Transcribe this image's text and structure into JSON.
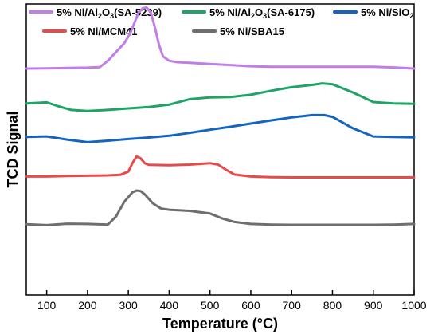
{
  "chart_data": {
    "type": "line",
    "xlabel": "Temperature (°C)",
    "ylabel": "TCD Signal",
    "xlim": [
      50,
      1000
    ],
    "ylim": [
      0,
      100
    ],
    "x_ticks": [
      100,
      200,
      300,
      400,
      500,
      600,
      700,
      800,
      900,
      1000
    ],
    "x_tick_labels": [
      "100",
      "200",
      "300",
      "400",
      "500",
      "600",
      "700",
      "800",
      "900",
      "1000"
    ],
    "y_ticks_shown": false,
    "grid": false,
    "legend_position": "top",
    "series": [
      {
        "name_parts": [
          [
            "5% Ni/Al",
            false
          ],
          [
            "2",
            true
          ],
          [
            "O",
            false
          ],
          [
            "3",
            true
          ],
          [
            "(SA-5239)",
            false
          ]
        ],
        "color": "#C07EE6",
        "x": [
          50,
          100,
          150,
          200,
          230,
          250,
          270,
          290,
          305,
          315,
          325,
          335,
          345,
          355,
          365,
          375,
          385,
          400,
          420,
          450,
          500,
          550,
          600,
          650,
          700,
          750,
          800,
          850,
          900,
          950,
          1000
        ],
        "y": [
          77.8,
          77.9,
          78.0,
          78.1,
          78.3,
          80.5,
          83.5,
          86.5,
          90.0,
          93.5,
          97.0,
          98.5,
          98.8,
          97.0,
          92.0,
          86.0,
          82.0,
          80.5,
          80.0,
          79.8,
          79.4,
          79.0,
          78.6,
          78.4,
          78.4,
          78.4,
          78.4,
          78.4,
          78.4,
          78.2,
          77.8
        ]
      },
      {
        "name_parts": [
          [
            "5% Ni/Al",
            false
          ],
          [
            "2",
            true
          ],
          [
            "O",
            false
          ],
          [
            "3",
            true
          ],
          [
            "(SA-6175)",
            false
          ]
        ],
        "color": "#1FA366",
        "x": [
          50,
          100,
          130,
          160,
          200,
          250,
          300,
          350,
          400,
          450,
          500,
          550,
          600,
          650,
          700,
          750,
          775,
          800,
          850,
          900,
          950,
          1000
        ],
        "y": [
          65.8,
          66.2,
          64.8,
          63.6,
          63.2,
          63.6,
          64.1,
          64.6,
          65.4,
          67.3,
          67.9,
          68.0,
          68.8,
          70.2,
          71.4,
          72.2,
          72.7,
          72.4,
          69.6,
          66.3,
          65.8,
          65.7
        ]
      },
      {
        "name_parts": [
          [
            "5% Ni/SiO",
            false
          ],
          [
            "2",
            true
          ]
        ],
        "color": "#1565C0",
        "x": [
          50,
          100,
          150,
          200,
          250,
          300,
          350,
          400,
          450,
          500,
          550,
          600,
          650,
          700,
          750,
          780,
          800,
          850,
          900,
          950,
          1000
        ],
        "y": [
          54.3,
          54.5,
          53.4,
          52.5,
          53.0,
          53.6,
          54.1,
          54.7,
          55.7,
          56.8,
          57.8,
          58.9,
          60.0,
          61.0,
          61.8,
          61.8,
          61.2,
          57.3,
          54.5,
          54.3,
          54.2
        ]
      },
      {
        "name_parts": [
          [
            "5% Ni/MCM41",
            false
          ]
        ],
        "color": "#E84A4A",
        "x": [
          50,
          100,
          150,
          200,
          250,
          280,
          300,
          310,
          320,
          330,
          340,
          350,
          400,
          450,
          500,
          520,
          540,
          560,
          600,
          650,
          700,
          750,
          800,
          850,
          900,
          950,
          1000
        ],
        "y": [
          40.7,
          40.7,
          40.9,
          41.0,
          41.1,
          41.3,
          42.4,
          45.3,
          47.6,
          47.0,
          45.3,
          44.7,
          44.6,
          44.8,
          45.3,
          44.8,
          43.0,
          41.4,
          40.7,
          40.5,
          40.4,
          40.4,
          40.4,
          40.4,
          40.4,
          40.4,
          40.4
        ]
      },
      {
        "name_parts": [
          [
            "5% Ni/SBA15",
            false
          ]
        ],
        "color": "#6E6E6E",
        "x": [
          50,
          100,
          150,
          200,
          250,
          270,
          290,
          310,
          320,
          330,
          340,
          360,
          380,
          400,
          450,
          500,
          530,
          560,
          600,
          650,
          700,
          750,
          800,
          850,
          900,
          950,
          1000
        ],
        "y": [
          24.3,
          24.0,
          24.5,
          24.4,
          24.2,
          27.0,
          32.0,
          35.3,
          35.9,
          35.7,
          34.6,
          31.5,
          29.7,
          29.3,
          28.9,
          28.0,
          26.3,
          25.1,
          24.4,
          24.2,
          24.1,
          24.1,
          24.1,
          24.1,
          24.1,
          24.2,
          24.4
        ]
      }
    ]
  }
}
